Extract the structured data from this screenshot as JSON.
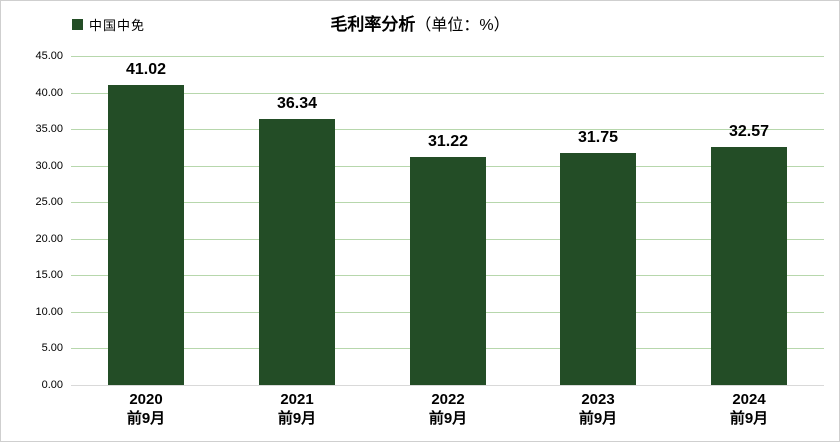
{
  "header": {
    "legend": {
      "label": "中国中免"
    },
    "title": {
      "main": "毛利率分析",
      "suffix": "（单位：%）"
    }
  },
  "chart_data": {
    "type": "bar",
    "title": "毛利率分析（单位：%）",
    "legend": [
      "中国中免"
    ],
    "legend_position": "top-left",
    "categories": [
      [
        "2020",
        "前9月"
      ],
      [
        "2021",
        "前9月"
      ],
      [
        "2022",
        "前9月"
      ],
      [
        "2023",
        "前9月"
      ],
      [
        "2024",
        "前9月"
      ]
    ],
    "values": [
      41.02,
      36.34,
      31.22,
      31.75,
      32.57
    ],
    "value_labels": [
      "41.02",
      "36.34",
      "31.22",
      "31.75",
      "32.57"
    ],
    "ylim": [
      0,
      45
    ],
    "ytick_step": 5,
    "ytick_labels": [
      "0.00",
      "5.00",
      "10.00",
      "15.00",
      "20.00",
      "25.00",
      "30.00",
      "35.00",
      "40.00",
      "45.00"
    ],
    "grid": true,
    "colors": {
      "bar": "#234d26",
      "gridline": "#b7d7ac",
      "baseline": "#d9d9d9",
      "text": "#000000"
    }
  }
}
